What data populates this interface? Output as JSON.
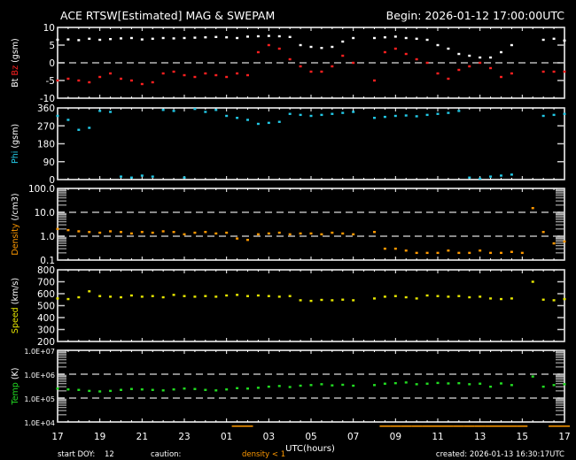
{
  "header": {
    "title": "ACE RTSW[Estimated] MAG & SWEPAM",
    "begin": "Begin: 2026-01-12 17:00:00UTC"
  },
  "footer": {
    "start_doy_label": "start DOY:",
    "start_doy": "12",
    "caution_label": "caution:",
    "caution_text": "density < 1",
    "created": "created: 2026-01-13 16:30:17UTC"
  },
  "colors": {
    "bt": "#ffffff",
    "bz": "#ff2020",
    "phi": "#22c8e6",
    "density": "#ff9900",
    "speed": "#e6e600",
    "temp": "#22dd22",
    "axis": "#ffffff",
    "dash": "#cccccc"
  },
  "chart_data": {
    "type": "scatter",
    "x": {
      "label": "UTC(hours)",
      "range_hours": [
        0,
        24
      ],
      "tick_labels": [
        "17",
        "19",
        "21",
        "23",
        "01",
        "03",
        "05",
        "07",
        "09",
        "11",
        "13",
        "15",
        "17"
      ],
      "sample_interval_hours": 0.5
    },
    "panels": [
      {
        "id": "mag",
        "ylabel": [
          {
            "text": "Bt",
            "color": "#ffffff"
          },
          {
            "text": " Bz",
            "color": "#ff2020"
          },
          {
            "text": " (gsm)",
            "color": "#ffffff"
          }
        ],
        "scale": "linear",
        "ylim": [
          -10,
          10
        ],
        "ticks": [
          {
            "v": 10,
            "l": "10"
          },
          {
            "v": 5,
            "l": "5"
          },
          {
            "v": 0,
            "l": "0"
          },
          {
            "v": -5,
            "l": "-5"
          },
          {
            "v": -10,
            "l": "-10"
          }
        ],
        "dashed": [
          0
        ],
        "series": [
          {
            "name": "Bt",
            "color": "#ffffff",
            "values": [
              6.5,
              6.6,
              6.4,
              6.8,
              6.5,
              6.7,
              6.9,
              7,
              6.6,
              6.8,
              7,
              6.9,
              7,
              7.1,
              7.2,
              7.3,
              7.2,
              7,
              7.4,
              7.5,
              7.6,
              7.5,
              7.3,
              5,
              4.5,
              4.2,
              4.5,
              6,
              7,
              null,
              7,
              7.2,
              7.4,
              7,
              6.8,
              6.5,
              5,
              4,
              2.5,
              2,
              1.5,
              1.5,
              3,
              5,
              null,
              null,
              6.5,
              6.8,
              6.3
            ]
          },
          {
            "name": "Bz",
            "color": "#ff2020",
            "values": [
              -5,
              -4.5,
              -5,
              -5.5,
              -4,
              -3,
              -4.5,
              -5,
              -6,
              -5.5,
              -3,
              -2.5,
              -3.5,
              -4,
              -3,
              -3.5,
              -4,
              -3,
              -3.5,
              3,
              5,
              4,
              1,
              -1,
              -2.5,
              -2.5,
              -1,
              2,
              0,
              null,
              -5,
              3,
              4,
              2.5,
              1,
              0,
              -3,
              -4.5,
              -2,
              -1,
              0,
              -1.5,
              -4,
              -3,
              null,
              null,
              -2.5,
              -2.5,
              -2.5
            ]
          }
        ]
      },
      {
        "id": "phi",
        "ylabel": [
          {
            "text": "Phi",
            "color": "#22c8e6"
          },
          {
            "text": " (gsm)",
            "color": "#ffffff"
          }
        ],
        "scale": "linear",
        "ylim": [
          0,
          360
        ],
        "ticks": [
          {
            "v": 360,
            "l": "360"
          },
          {
            "v": 270,
            "l": "270"
          },
          {
            "v": 180,
            "l": "180"
          },
          {
            "v": 90,
            "l": "90"
          },
          {
            "v": 0,
            "l": "0"
          }
        ],
        "dashed": [],
        "series": [
          {
            "name": "Phi",
            "color": "#22c8e6",
            "values": [
              320,
              300,
              250,
              260,
              345,
              340,
              15,
              10,
              20,
              15,
              350,
              345,
              10,
              355,
              340,
              350,
              320,
              310,
              300,
              280,
              285,
              290,
              330,
              325,
              320,
              325,
              330,
              335,
              340,
              null,
              310,
              315,
              320,
              322,
              318,
              325,
              330,
              335,
              345,
              10,
              5,
              15,
              20,
              25,
              null,
              null,
              320,
              325,
              330
            ]
          }
        ]
      },
      {
        "id": "density",
        "ylabel": [
          {
            "text": "Density",
            "color": "#ff9900"
          },
          {
            "text": " (/cm3)",
            "color": "#ffffff"
          }
        ],
        "scale": "log",
        "ylim": [
          0.1,
          100
        ],
        "ticks": [
          {
            "v": 100,
            "l": "100.0"
          },
          {
            "v": 10,
            "l": "10.0"
          },
          {
            "v": 1,
            "l": "1.0"
          },
          {
            "v": 0.1,
            "l": "0.1"
          }
        ],
        "dashed": [
          10,
          1
        ],
        "series": [
          {
            "name": "Density",
            "color": "#ff9900",
            "values": [
              2,
              1.8,
              1.6,
              1.5,
              1.4,
              1.6,
              1.5,
              1.3,
              1.5,
              1.4,
              1.6,
              1.5,
              1.2,
              1.4,
              1.5,
              1.3,
              1.4,
              0.8,
              0.7,
              1.2,
              1.3,
              1.4,
              1.2,
              1.3,
              1.3,
              1.2,
              1.4,
              1.3,
              1.2,
              null,
              1.5,
              0.3,
              0.3,
              0.25,
              0.2,
              0.2,
              0.2,
              0.25,
              0.2,
              0.2,
              0.25,
              0.2,
              0.2,
              0.22,
              0.2,
              15,
              1.5,
              0.5,
              0.6
            ]
          }
        ]
      },
      {
        "id": "speed",
        "ylabel": [
          {
            "text": "Speed",
            "color": "#e6e600"
          },
          {
            "text": " (km/s)",
            "color": "#ffffff"
          }
        ],
        "scale": "linear",
        "ylim": [
          200,
          800
        ],
        "ticks": [
          {
            "v": 800,
            "l": "800"
          },
          {
            "v": 700,
            "l": "700"
          },
          {
            "v": 600,
            "l": "600"
          },
          {
            "v": 500,
            "l": "500"
          },
          {
            "v": 400,
            "l": "400"
          },
          {
            "v": 300,
            "l": "300"
          },
          {
            "v": 200,
            "l": "200"
          }
        ],
        "dashed": [],
        "series": [
          {
            "name": "Speed",
            "color": "#e6e600",
            "values": [
              560,
              555,
              570,
              620,
              580,
              575,
              570,
              585,
              575,
              580,
              570,
              590,
              580,
              575,
              580,
              575,
              585,
              590,
              580,
              585,
              580,
              575,
              580,
              545,
              540,
              548,
              545,
              550,
              545,
              null,
              560,
              575,
              580,
              570,
              560,
              585,
              580,
              575,
              580,
              570,
              575,
              560,
              555,
              560,
              null,
              700,
              550,
              545,
              555
            ]
          }
        ]
      },
      {
        "id": "temp",
        "ylabel": [
          {
            "text": "Temp",
            "color": "#22dd22"
          },
          {
            "text": " (K)",
            "color": "#ffffff"
          }
        ],
        "scale": "log",
        "ylim": [
          10000,
          10000000
        ],
        "ticks": [
          {
            "v": 10000000,
            "l": "1.0E+07"
          },
          {
            "v": 1000000,
            "l": "1.0E+06"
          },
          {
            "v": 100000,
            "l": "1.0E+05"
          },
          {
            "v": 10000,
            "l": "1.0E+04"
          }
        ],
        "dashed": [
          1000000,
          100000
        ],
        "series": [
          {
            "name": "Temp",
            "color": "#22dd22",
            "values": [
              250000,
              230000,
              220000,
              200000,
              190000,
              200000,
              220000,
              240000,
              230000,
              220000,
              210000,
              230000,
              250000,
              240000,
              220000,
              210000,
              230000,
              260000,
              250000,
              270000,
              300000,
              320000,
              290000,
              330000,
              350000,
              380000,
              340000,
              360000,
              330000,
              null,
              350000,
              400000,
              420000,
              450000,
              380000,
              400000,
              430000,
              410000,
              420000,
              380000,
              400000,
              300000,
              410000,
              350000,
              null,
              800000,
              300000,
              350000,
              380000
            ]
          }
        ]
      }
    ]
  }
}
